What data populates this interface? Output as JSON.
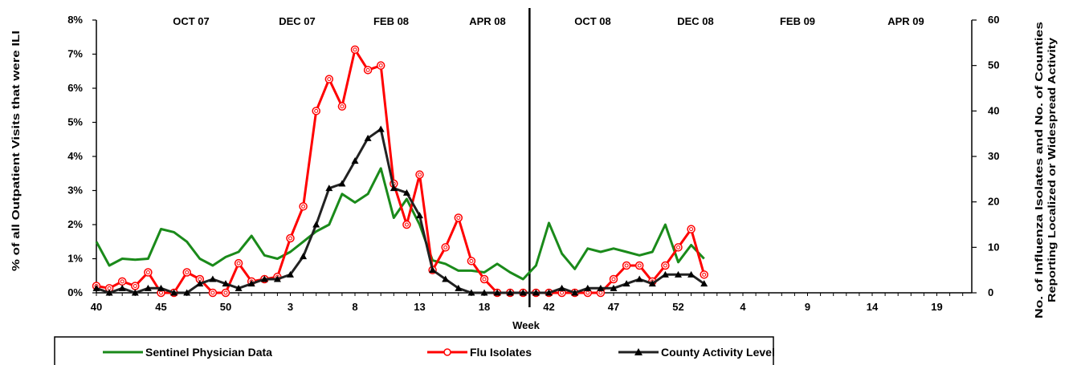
{
  "chart_data": {
    "type": "line",
    "xlabel": "Week",
    "ylabel_left": "% of all Outpatient Visits that were ILI",
    "ylabel_right_line1": "No.  of  Influenza  Isolates  and  No.  of  Counties",
    "ylabel_right_line2": "Reporting Localized or Widespread Activity",
    "ylim_left": [
      0,
      8
    ],
    "ylim_right": [
      0,
      60
    ],
    "left_ticks": [
      "0%",
      "1%",
      "2%",
      "3%",
      "4%",
      "5%",
      "6%",
      "7%",
      "8%"
    ],
    "right_ticks": [
      "0",
      "10",
      "20",
      "30",
      "40",
      "50",
      "60"
    ],
    "week_ticks": [
      "40",
      "45",
      "50",
      "3",
      "8",
      "13",
      "18",
      "42",
      "47",
      "52",
      "4",
      "9",
      "14",
      "19"
    ],
    "month_labels": [
      "OCT 07",
      "DEC 07",
      "FEB 08",
      "APR 08",
      "OCT 08",
      "DEC 08",
      "FEB 09",
      "APR 09"
    ],
    "season_break": "between week 20 (2008) and week 41 (2008)",
    "grid": false,
    "legend_position": "bottom",
    "series": [
      {
        "name": "Sentinel Physician Data",
        "axis": "left",
        "color": "#1a8a1a",
        "marker": "none",
        "values": [
          1.5,
          0.8,
          1.0,
          0.97,
          1.0,
          1.87,
          1.78,
          1.5,
          1.0,
          0.8,
          1.05,
          1.2,
          1.67,
          1.1,
          1.0,
          1.2,
          1.5,
          1.8,
          2.0,
          2.9,
          2.65,
          2.9,
          3.65,
          2.2,
          2.75,
          2.0,
          0.95,
          0.85,
          0.65,
          0.65,
          0.6,
          0.85,
          0.6,
          0.4,
          0.8,
          2.05,
          1.15,
          0.7,
          1.3,
          1.2,
          1.3,
          1.2,
          1.1,
          1.2,
          2.0,
          0.9,
          1.4,
          1.0
        ]
      },
      {
        "name": "Flu Isolates",
        "axis": "right",
        "color": "#ff0000",
        "marker": "circle",
        "values": [
          1.5,
          1.0,
          2.5,
          1.5,
          4.5,
          0.0,
          0.0,
          4.5,
          3.0,
          0.0,
          0.0,
          6.5,
          2.5,
          3.0,
          3.5,
          12.0,
          19.0,
          40.0,
          47.0,
          41.0,
          53.5,
          49.0,
          50.0,
          24.0,
          15.0,
          26.0,
          5.0,
          10.0,
          16.5,
          7.0,
          3.0,
          0.0,
          0.0,
          0.0,
          0.0,
          0.0,
          0.0,
          0.0,
          0.0,
          0.0,
          3.0,
          6.0,
          6.0,
          2.5,
          6.0,
          10.0,
          14.0,
          4.0
        ]
      },
      {
        "name": "County Activity Level",
        "axis": "right",
        "color": "#222222",
        "marker": "triangle",
        "values": [
          1.0,
          0.0,
          1.0,
          0.0,
          1.0,
          1.0,
          0.0,
          0.0,
          2.0,
          3.0,
          2.0,
          1.0,
          2.0,
          3.0,
          3.0,
          4.0,
          8.0,
          15.0,
          23.0,
          24.0,
          29.0,
          34.0,
          36.0,
          23.0,
          22.0,
          17.0,
          5.0,
          3.0,
          1.0,
          0.0,
          0.0,
          0.0,
          0.0,
          0.0,
          0.0,
          0.0,
          1.0,
          0.0,
          1.0,
          1.0,
          1.0,
          2.0,
          3.0,
          2.0,
          4.0,
          4.0,
          4.0,
          2.0
        ]
      }
    ]
  }
}
